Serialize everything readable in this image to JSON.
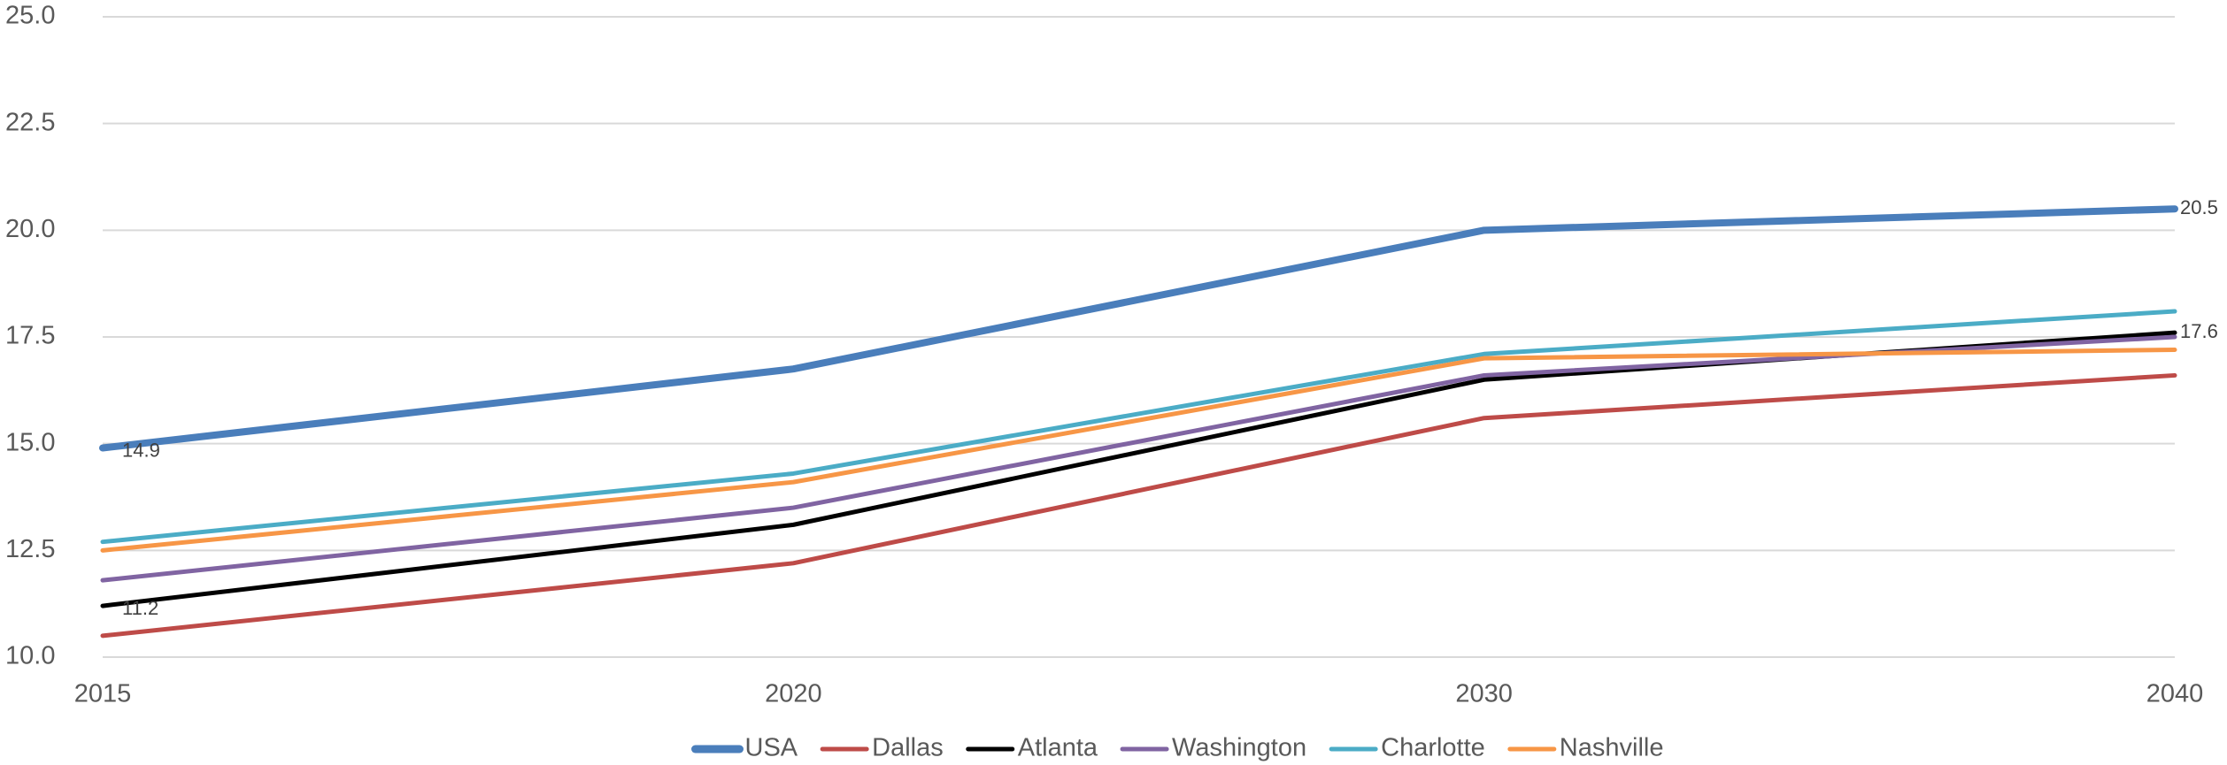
{
  "chart_data": {
    "type": "line",
    "categories": [
      "2015",
      "2020",
      "2030",
      "2040"
    ],
    "ylim": [
      10,
      25
    ],
    "yticks": [
      {
        "value": 10,
        "label": "10.0"
      },
      12.5,
      {
        "value": 15,
        "label": "15.0"
      },
      17.5,
      {
        "value": 20,
        "label": "20.0"
      },
      22.5,
      {
        "value": 25,
        "label": "25.0"
      }
    ],
    "grid": true,
    "legend": "bottom",
    "series": [
      {
        "name": "USA",
        "color": "#4a7ebb",
        "values": [
          14.9,
          16.75,
          20.0,
          20.5
        ],
        "label_points": [
          0,
          3
        ]
      },
      {
        "name": "Dallas",
        "color": "#be4b48",
        "values": [
          10.5,
          12.2,
          15.6,
          16.6
        ]
      },
      {
        "name": "Atlanta",
        "color": "#000000",
        "values": [
          11.2,
          13.1,
          16.5,
          17.6
        ],
        "label_points": [
          0,
          3
        ]
      },
      {
        "name": "Washington",
        "color": "#8064a2",
        "values": [
          11.8,
          13.5,
          16.6,
          17.5
        ]
      },
      {
        "name": "Charlotte",
        "color": "#4bacc6",
        "values": [
          12.7,
          14.3,
          17.1,
          18.1
        ]
      },
      {
        "name": "Nashville",
        "color": "#f79646",
        "values": [
          12.5,
          14.1,
          17.0,
          17.2
        ]
      }
    ]
  }
}
